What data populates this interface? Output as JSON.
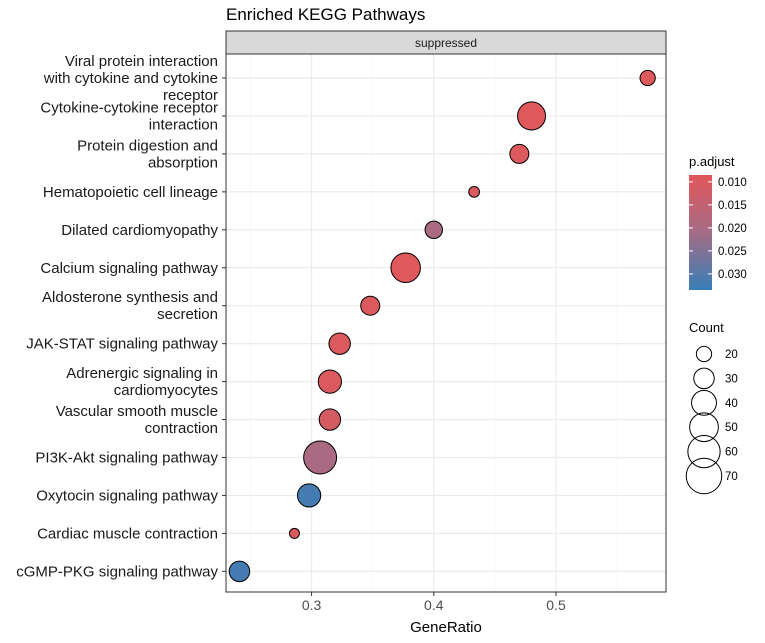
{
  "chart_data": {
    "type": "scatter",
    "title": "Enriched KEGG Pathways",
    "facet_label": "suppressed",
    "xlabel": "GeneRatio",
    "xlim": [
      0.23,
      0.59
    ],
    "xticks": [
      0.3,
      0.4,
      0.5
    ],
    "xtick_labels": [
      "0.3",
      "0.4",
      "0.5"
    ],
    "grid": true,
    "categories": [
      [
        "Viral protein interaction",
        "with cytokine and cytokine",
        "receptor"
      ],
      [
        "Cytokine-cytokine receptor",
        "interaction"
      ],
      [
        "Protein digestion and",
        "absorption"
      ],
      [
        "Hematopoietic cell lineage"
      ],
      [
        "Dilated cardiomyopathy"
      ],
      [
        "Calcium signaling pathway"
      ],
      [
        "Aldosterone synthesis and",
        "secretion"
      ],
      [
        "JAK-STAT signaling pathway"
      ],
      [
        "Adrenergic signaling in",
        "cardiomyocytes"
      ],
      [
        "Vascular smooth muscle",
        "contraction"
      ],
      [
        "PI3K-Akt signaling pathway"
      ],
      [
        "Oxytocin signaling pathway"
      ],
      [
        "Cardiac muscle contraction"
      ],
      [
        "cGMP-PKG signaling pathway"
      ]
    ],
    "points": [
      {
        "gene_ratio": 0.575,
        "count": 20,
        "p_adjust": 0.009
      },
      {
        "gene_ratio": 0.48,
        "count": 48,
        "p_adjust": 0.009
      },
      {
        "gene_ratio": 0.47,
        "count": 27,
        "p_adjust": 0.0095
      },
      {
        "gene_ratio": 0.433,
        "count": 13,
        "p_adjust": 0.01
      },
      {
        "gene_ratio": 0.4,
        "count": 24,
        "p_adjust": 0.02
      },
      {
        "gene_ratio": 0.377,
        "count": 52,
        "p_adjust": 0.009
      },
      {
        "gene_ratio": 0.348,
        "count": 27,
        "p_adjust": 0.01
      },
      {
        "gene_ratio": 0.323,
        "count": 32,
        "p_adjust": 0.01
      },
      {
        "gene_ratio": 0.315,
        "count": 36,
        "p_adjust": 0.01
      },
      {
        "gene_ratio": 0.315,
        "count": 32,
        "p_adjust": 0.011
      },
      {
        "gene_ratio": 0.307,
        "count": 62,
        "p_adjust": 0.02
      },
      {
        "gene_ratio": 0.298,
        "count": 36,
        "p_adjust": 0.032
      },
      {
        "gene_ratio": 0.286,
        "count": 12,
        "p_adjust": 0.0095
      },
      {
        "gene_ratio": 0.241,
        "count": 30,
        "p_adjust": 0.032
      }
    ],
    "color_legend": {
      "title": "p.adjust",
      "min": 0.0085,
      "max": 0.0335,
      "ticks": [
        0.01,
        0.015,
        0.02,
        0.025,
        0.03
      ],
      "tick_labels": [
        "0.010",
        "0.015",
        "0.020",
        "0.025",
        "0.030"
      ],
      "low_color": "#e15759",
      "high_color": "#377eb8"
    },
    "size_legend": {
      "title": "Count",
      "values": [
        20,
        30,
        40,
        50,
        60,
        70
      ],
      "labels": [
        "20",
        "30",
        "40",
        "50",
        "60",
        "70"
      ]
    }
  }
}
